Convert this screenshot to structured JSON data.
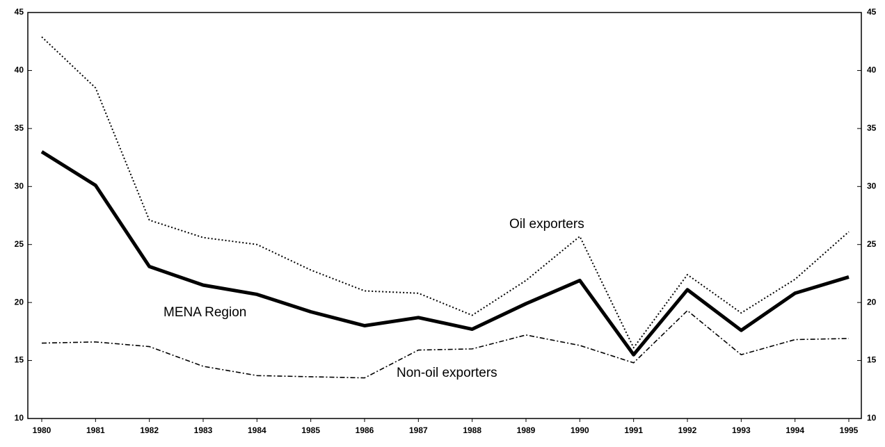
{
  "chart_data": {
    "type": "line",
    "categories": [
      "1980",
      "1981",
      "1982",
      "1983",
      "1984",
      "1985",
      "1986",
      "1987",
      "1988",
      "1989",
      "1990",
      "1991",
      "1992",
      "1993",
      "1994",
      "1995"
    ],
    "series": [
      {
        "name": "MENA Region",
        "color": "#000000",
        "style": "solid",
        "values": [
          33.0,
          30.1,
          23.1,
          21.5,
          20.7,
          19.2,
          18.0,
          18.7,
          17.7,
          19.9,
          21.9,
          15.5,
          21.1,
          17.6,
          20.8,
          22.2
        ]
      },
      {
        "name": "Oil exporters",
        "color": "#000000",
        "style": "dotted",
        "values": [
          42.9,
          38.5,
          27.1,
          25.6,
          25.0,
          22.8,
          21.0,
          20.8,
          18.9,
          21.9,
          25.7,
          16.1,
          22.4,
          19.1,
          22.0,
          26.1
        ]
      },
      {
        "name": "Non-oil exporters",
        "color": "#000000",
        "style": "dashdot",
        "values": [
          16.5,
          16.6,
          16.2,
          14.5,
          13.7,
          13.6,
          13.5,
          15.9,
          16.0,
          17.2,
          16.3,
          14.8,
          19.3,
          15.5,
          16.8,
          16.9
        ]
      }
    ],
    "ylim": [
      10,
      45
    ],
    "yticks": [
      10,
      15,
      20,
      25,
      30,
      35,
      40,
      45
    ],
    "y2lim": [
      10,
      45
    ],
    "y2ticks": [
      10,
      15,
      20,
      25,
      30,
      35,
      40,
      45
    ]
  }
}
